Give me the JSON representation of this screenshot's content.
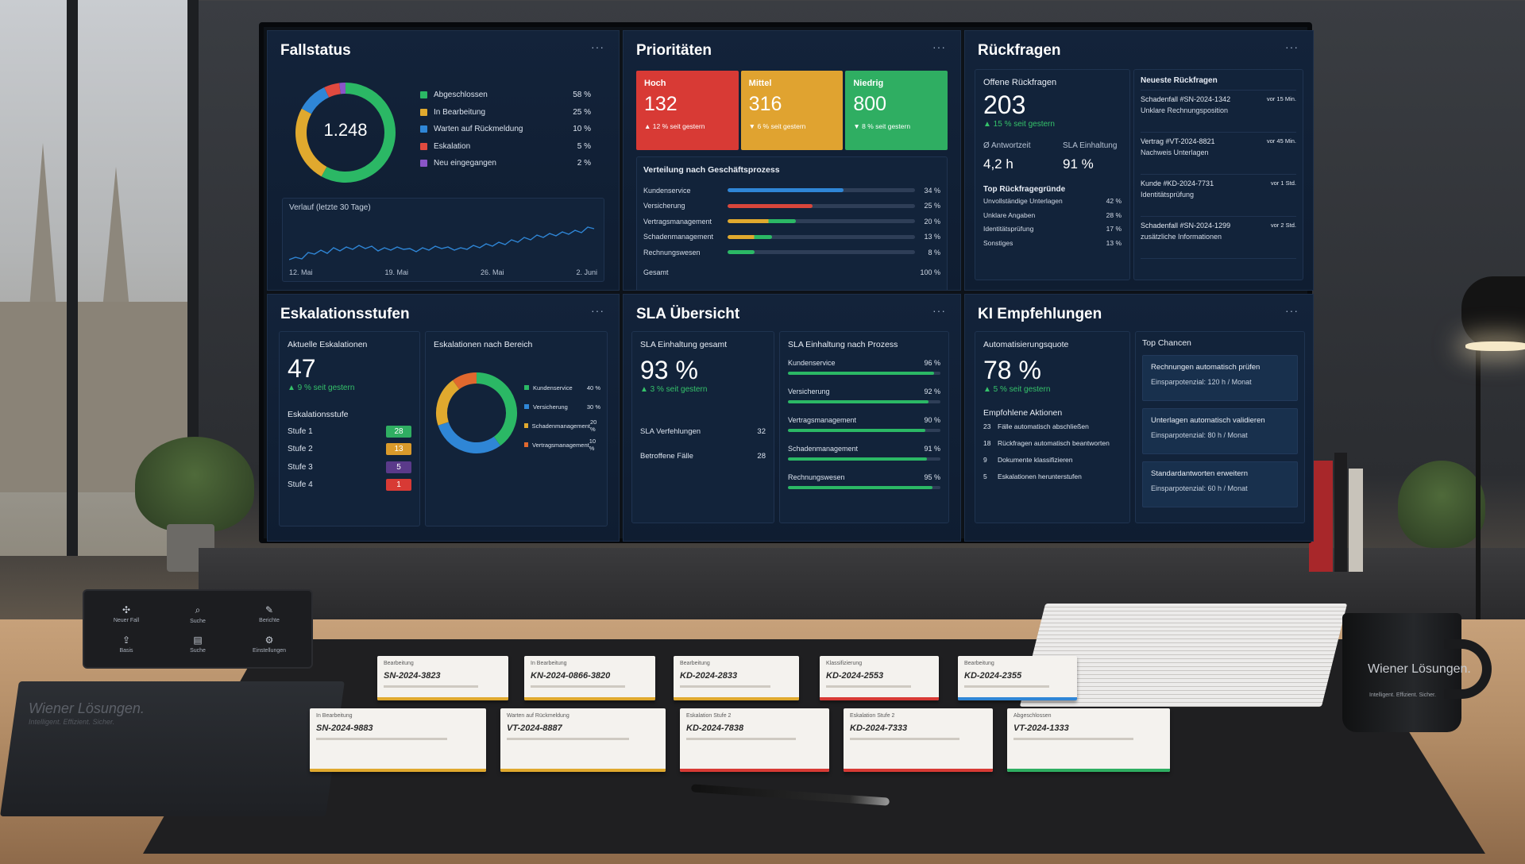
{
  "fallstatus": {
    "title": "Fallstatus",
    "more": "···",
    "total": "1.248",
    "legend": [
      {
        "label": "Abgeschlossen",
        "pct": "58 %",
        "value": 58,
        "color": "#2bb865"
      },
      {
        "label": "In Bearbeitung",
        "pct": "25 %",
        "value": 25,
        "color": "#e0a92e"
      },
      {
        "label": "Warten auf Rückmeldung",
        "pct": "10 %",
        "value": 10,
        "color": "#2f86d6"
      },
      {
        "label": "Eskalation",
        "pct": "5 %",
        "value": 5,
        "color": "#e04a3f"
      },
      {
        "label": "Neu eingegangen",
        "pct": "2 %",
        "value": 2,
        "color": "#8a55c8"
      }
    ],
    "trend_title": "Verlauf (letzte 30 Tage)",
    "trend_ticks": [
      "12. Mai",
      "19. Mai",
      "26. Mai",
      "2. Juni"
    ]
  },
  "prioritaeten": {
    "title": "Prioritäten",
    "more": "···",
    "cards": [
      {
        "name": "Hoch",
        "value": "132",
        "change": "▲ 12 % seit gestern",
        "color": "#d83a35"
      },
      {
        "name": "Mittel",
        "value": "316",
        "change": "▼ 6 % seit gestern",
        "color": "#e0a330"
      },
      {
        "name": "Niedrig",
        "value": "800",
        "change": "▼ 8 % seit gestern",
        "color": "#2fae62"
      }
    ],
    "distribution_title": "Verteilung nach Geschäftsprozess",
    "distribution": [
      {
        "label": "Kundenservice",
        "pct": "34 %",
        "value": 34,
        "color": "#2f86d6"
      },
      {
        "label": "Versicherung",
        "pct": "25 %",
        "value": 25,
        "color": "#d8463b"
      },
      {
        "label": "Vertragsmanagement",
        "pct": "20 %",
        "value": 20,
        "color": "#e0a92e",
        "color2": "#2bb865"
      },
      {
        "label": "Schadenmanagement",
        "pct": "13 %",
        "value": 13,
        "color": "#e0a92e",
        "color2": "#2bb865"
      },
      {
        "label": "Rechnungswesen",
        "pct": "8 %",
        "value": 8,
        "color": "#2bb865"
      }
    ],
    "total_label": "Gesamt",
    "total_pct": "100 %"
  },
  "rueckfragen": {
    "title": "Rückfragen",
    "more": "···",
    "open_label": "Offene Rückfragen",
    "open_value": "203",
    "open_change": "▲ 15 % seit gestern",
    "avg_label": "Ø Antwortzeit",
    "avg_value": "4,2 h",
    "sla_label": "SLA Einhaltung",
    "sla_value": "91 %",
    "reasons_title": "Top Rückfragegründe",
    "reasons": [
      {
        "label": "Unvollständige Unterlagen",
        "pct": "42 %"
      },
      {
        "label": "Unklare Angaben",
        "pct": "28 %"
      },
      {
        "label": "Identitätsprüfung",
        "pct": "17 %"
      },
      {
        "label": "Sonstiges",
        "pct": "13 %"
      }
    ],
    "latest_title": "Neueste Rückfragen",
    "latest": [
      {
        "title": "Schadenfall #SN-2024-1342",
        "time": "vor 15 Min.",
        "subject": "Unklare Rechnungsposition"
      },
      {
        "title": "Vertrag #VT-2024-8821",
        "time": "vor 45 Min.",
        "subject": "Nachweis Unterlagen"
      },
      {
        "title": "Kunde #KD-2024-7731",
        "time": "vor 1 Std.",
        "subject": "Identitätsprüfung"
      },
      {
        "title": "Schadenfall #SN-2024-1299",
        "time": "vor 2 Std.",
        "subject": "zusätzliche Informationen"
      }
    ]
  },
  "eskalation": {
    "title": "Eskalationsstufen",
    "more": "···",
    "current_label": "Aktuelle Eskalationen",
    "current_value": "47",
    "current_change": "▲ 9 % seit gestern",
    "stages_title": "Eskalationsstufe",
    "stages": [
      {
        "label": "Stufe 1",
        "value": "28",
        "color": "#2fae62"
      },
      {
        "label": "Stufe 2",
        "value": "13",
        "color": "#d99a2b"
      },
      {
        "label": "Stufe 3",
        "value": "5",
        "color": "#5a3a8a"
      },
      {
        "label": "Stufe 4",
        "value": "1",
        "color": "#d83a35"
      }
    ],
    "by_area_title": "Eskalationen nach Bereich",
    "by_area": [
      {
        "label": "Kundenservice",
        "pct": "40 %",
        "value": 40,
        "color": "#2bb865"
      },
      {
        "label": "Versicherung",
        "pct": "30 %",
        "value": 30,
        "color": "#2f86d6"
      },
      {
        "label": "Schadenmanagement",
        "pct": "20 %",
        "value": 20,
        "color": "#e0a92e"
      },
      {
        "label": "Vertragsmanagement",
        "pct": "10 %",
        "value": 10,
        "color": "#e0682e"
      }
    ]
  },
  "sla": {
    "title": "SLA Übersicht",
    "more": "···",
    "overall_label": "SLA Einhaltung gesamt",
    "overall_value": "93 %",
    "overall_change": "▲ 3 % seit gestern",
    "violations_label": "SLA Verfehlungen",
    "violations_value": "32",
    "affected_label": "Betroffene Fälle",
    "affected_value": "28",
    "by_process_title": "SLA Einhaltung nach Prozess",
    "by_process": [
      {
        "label": "Kundenservice",
        "pct": "96 %",
        "value": 96
      },
      {
        "label": "Versicherung",
        "pct": "92 %",
        "value": 92
      },
      {
        "label": "Vertragsmanagement",
        "pct": "90 %",
        "value": 90
      },
      {
        "label": "Schadenmanagement",
        "pct": "91 %",
        "value": 91
      },
      {
        "label": "Rechnungswesen",
        "pct": "95 %",
        "value": 95
      }
    ]
  },
  "ki": {
    "title": "KI Empfehlungen",
    "more": "···",
    "quota_label": "Automatisierungsquote",
    "quota_value": "78 %",
    "quota_change": "▲ 5 % seit gestern",
    "actions_title": "Empfohlene Aktionen",
    "actions": [
      {
        "n": "23",
        "label": "Fälle automatisch abschließen"
      },
      {
        "n": "18",
        "label": "Rückfragen automatisch beantworten"
      },
      {
        "n": "9",
        "label": "Dokumente klassifizieren"
      },
      {
        "n": "5",
        "label": "Eskalationen herunterstufen"
      }
    ],
    "chances_title": "Top Chancen",
    "chances": [
      {
        "title": "Rechnungen automatisch prüfen",
        "potential": "Einsparpotenzial: 120 h / Monat"
      },
      {
        "title": "Unterlagen automatisch validieren",
        "potential": "Einsparpotenzial: 80 h / Monat"
      },
      {
        "title": "Standardantworten erweitern",
        "potential": "Einsparpotenzial: 60 h / Monat"
      }
    ]
  },
  "tablet": {
    "buttons": [
      {
        "label": "Neuer Fall",
        "icon": "plus-icon"
      },
      {
        "label": "Suche",
        "icon": "search-icon"
      },
      {
        "label": "Berichte",
        "icon": "edit-icon"
      },
      {
        "label": "Basis",
        "icon": "upload-icon"
      },
      {
        "label": "Suche",
        "icon": "list-icon"
      },
      {
        "label": "Einstellungen",
        "icon": "gear-icon"
      }
    ]
  },
  "brand": {
    "name": "Wiener Lösungen.",
    "tagline": "Intelligent. Effizient. Sicher."
  },
  "case_cards": [
    {
      "tag": "Bearbeitung",
      "id": "SN-2024-3823",
      "color": "#e0a92e"
    },
    {
      "tag": "In Bearbeitung",
      "id": "KN-2024-0866-3820",
      "color": "#e0a92e"
    },
    {
      "tag": "Bearbeitung",
      "id": "KD-2024-2833",
      "color": "#e0a92e"
    },
    {
      "tag": "Klassifizierung",
      "id": "KD-2024-2553",
      "color": "#d83a35"
    },
    {
      "tag": "Bearbeitung",
      "id": "KD-2024-2355",
      "color": "#2f86d6"
    },
    {
      "tag": "In Bearbeitung",
      "id": "SN-2024-9883",
      "color": "#e0a92e"
    },
    {
      "tag": "Warten auf Rückmeldung",
      "id": "VT-2024-8887",
      "color": "#e0a92e"
    },
    {
      "tag": "Eskalation Stufe 2",
      "id": "KD-2024-7838",
      "color": "#d83a35"
    },
    {
      "tag": "Eskalation Stufe 2",
      "id": "KD-2024-7333",
      "color": "#d83a35"
    },
    {
      "tag": "Abgeschlossen",
      "id": "VT-2024-1333",
      "color": "#2fae62"
    }
  ]
}
